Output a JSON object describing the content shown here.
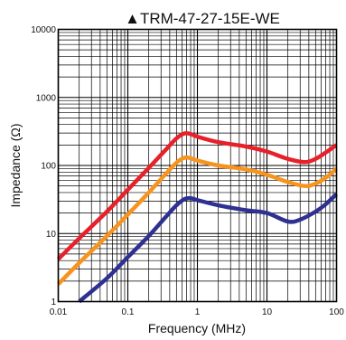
{
  "chart_data": {
    "type": "line",
    "title": "▲TRM-47-27-15E-WE",
    "xlabel": "Frequency (MHz)",
    "ylabel": "Impedance (Ω)",
    "x_scale": "log",
    "y_scale": "log",
    "xlim": [
      0.01,
      100
    ],
    "ylim": [
      1,
      10000
    ],
    "x_ticks": [
      0.01,
      0.1,
      1,
      10,
      100
    ],
    "x_tick_labels": [
      "0.01",
      "0.1",
      "1",
      "10",
      "100"
    ],
    "y_ticks": [
      1,
      10,
      100,
      1000,
      10000
    ],
    "y_tick_labels": [
      "1",
      "10",
      "100",
      "1000",
      "10000"
    ],
    "grid": true,
    "legend": "none",
    "series": [
      {
        "color": "#e8202a",
        "points": [
          [
            0.01,
            4.2
          ],
          [
            0.02,
            8.5
          ],
          [
            0.05,
            21
          ],
          [
            0.1,
            44
          ],
          [
            0.2,
            92
          ],
          [
            0.35,
            170
          ],
          [
            0.5,
            250
          ],
          [
            0.65,
            295
          ],
          [
            0.8,
            290
          ],
          [
            1,
            265
          ],
          [
            2,
            220
          ],
          [
            5,
            190
          ],
          [
            10,
            160
          ],
          [
            20,
            125
          ],
          [
            35,
            112
          ],
          [
            50,
            125
          ],
          [
            70,
            155
          ],
          [
            100,
            200
          ]
        ]
      },
      {
        "color": "#f7941d",
        "points": [
          [
            0.01,
            1.8
          ],
          [
            0.02,
            3.7
          ],
          [
            0.05,
            9.2
          ],
          [
            0.1,
            19
          ],
          [
            0.2,
            40
          ],
          [
            0.35,
            75
          ],
          [
            0.5,
            110
          ],
          [
            0.65,
            130
          ],
          [
            0.8,
            128
          ],
          [
            1,
            118
          ],
          [
            2,
            100
          ],
          [
            5,
            88
          ],
          [
            10,
            73
          ],
          [
            20,
            57
          ],
          [
            35,
            50
          ],
          [
            50,
            54
          ],
          [
            70,
            66
          ],
          [
            100,
            90
          ]
        ]
      },
      {
        "color": "#2e3192",
        "points": [
          [
            0.02,
            1.0
          ],
          [
            0.05,
            2.2
          ],
          [
            0.1,
            4.5
          ],
          [
            0.2,
            9.2
          ],
          [
            0.35,
            17.5
          ],
          [
            0.5,
            26
          ],
          [
            0.65,
            32
          ],
          [
            0.8,
            33
          ],
          [
            1,
            31
          ],
          [
            2,
            26
          ],
          [
            5,
            22
          ],
          [
            10,
            20
          ],
          [
            20,
            15
          ],
          [
            30,
            16
          ],
          [
            50,
            21
          ],
          [
            70,
            27
          ],
          [
            100,
            38
          ]
        ]
      }
    ]
  }
}
